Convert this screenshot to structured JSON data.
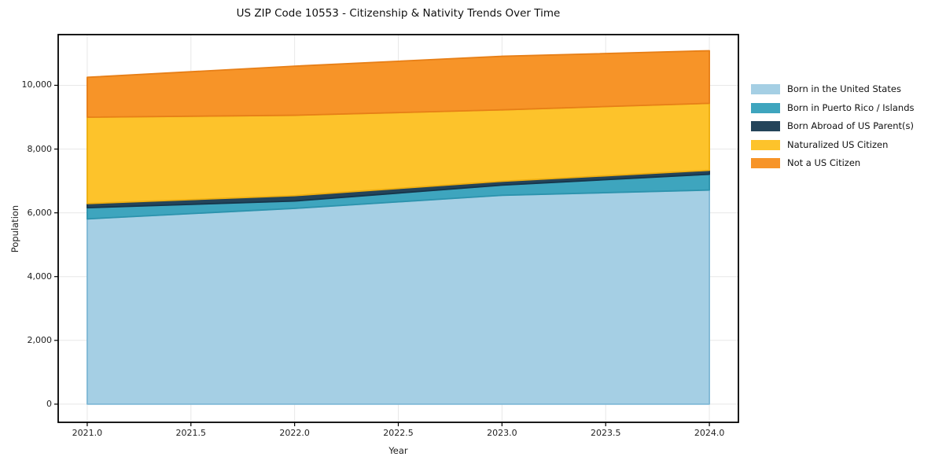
{
  "chart_data": {
    "type": "area",
    "stacked": true,
    "title": "US ZIP Code 10553 - Citizenship & Nativity Trends Over Time",
    "xlabel": "Year",
    "ylabel": "Population",
    "grid": true,
    "legend_position": "right-outside",
    "x": [
      2021,
      2022,
      2023,
      2024
    ],
    "series": [
      {
        "name": "Born in the United States",
        "color": "#a5cfe4",
        "edge_color": "#7fb8d6",
        "values": [
          5810,
          6140,
          6550,
          6715
        ]
      },
      {
        "name": "Born in Puerto Rico / Islands",
        "color": "#3ea5be",
        "edge_color": "#2c93ad",
        "values": [
          350,
          230,
          320,
          495
        ]
      },
      {
        "name": "Born Abroad of US Parent(s)",
        "color": "#24445a",
        "edge_color": "#16354a",
        "values": [
          130,
          170,
          120,
          125
        ]
      },
      {
        "name": "Naturalized US Citizen",
        "color": "#fdc32b",
        "edge_color": "#eeae10",
        "values": [
          2710,
          2520,
          2240,
          2100
        ]
      },
      {
        "name": "Not a US Citizen",
        "color": "#f79428",
        "edge_color": "#e77f17",
        "values": [
          1250,
          1540,
          1680,
          1650
        ]
      }
    ],
    "stacked_totals": [
      10250,
      10600,
      10910,
      11085
    ],
    "xticks": {
      "values": [
        2021.0,
        2021.5,
        2022.0,
        2022.5,
        2023.0,
        2023.5,
        2024.0
      ],
      "labels": [
        "2021.0",
        "2021.5",
        "2022.0",
        "2022.5",
        "2023.0",
        "2023.5",
        "2024.0"
      ]
    },
    "yticks": {
      "values": [
        0,
        2000,
        4000,
        6000,
        8000,
        10000
      ],
      "labels": [
        "0",
        "2,000",
        "4,000",
        "6,000",
        "8,000",
        "10,000"
      ]
    },
    "xlim": [
      2020.86,
      2024.14
    ],
    "ylim": [
      -570,
      11590
    ],
    "colors": {
      "grid": "#e8e8e8",
      "spine": "#000000",
      "background": "#ffffff"
    }
  }
}
